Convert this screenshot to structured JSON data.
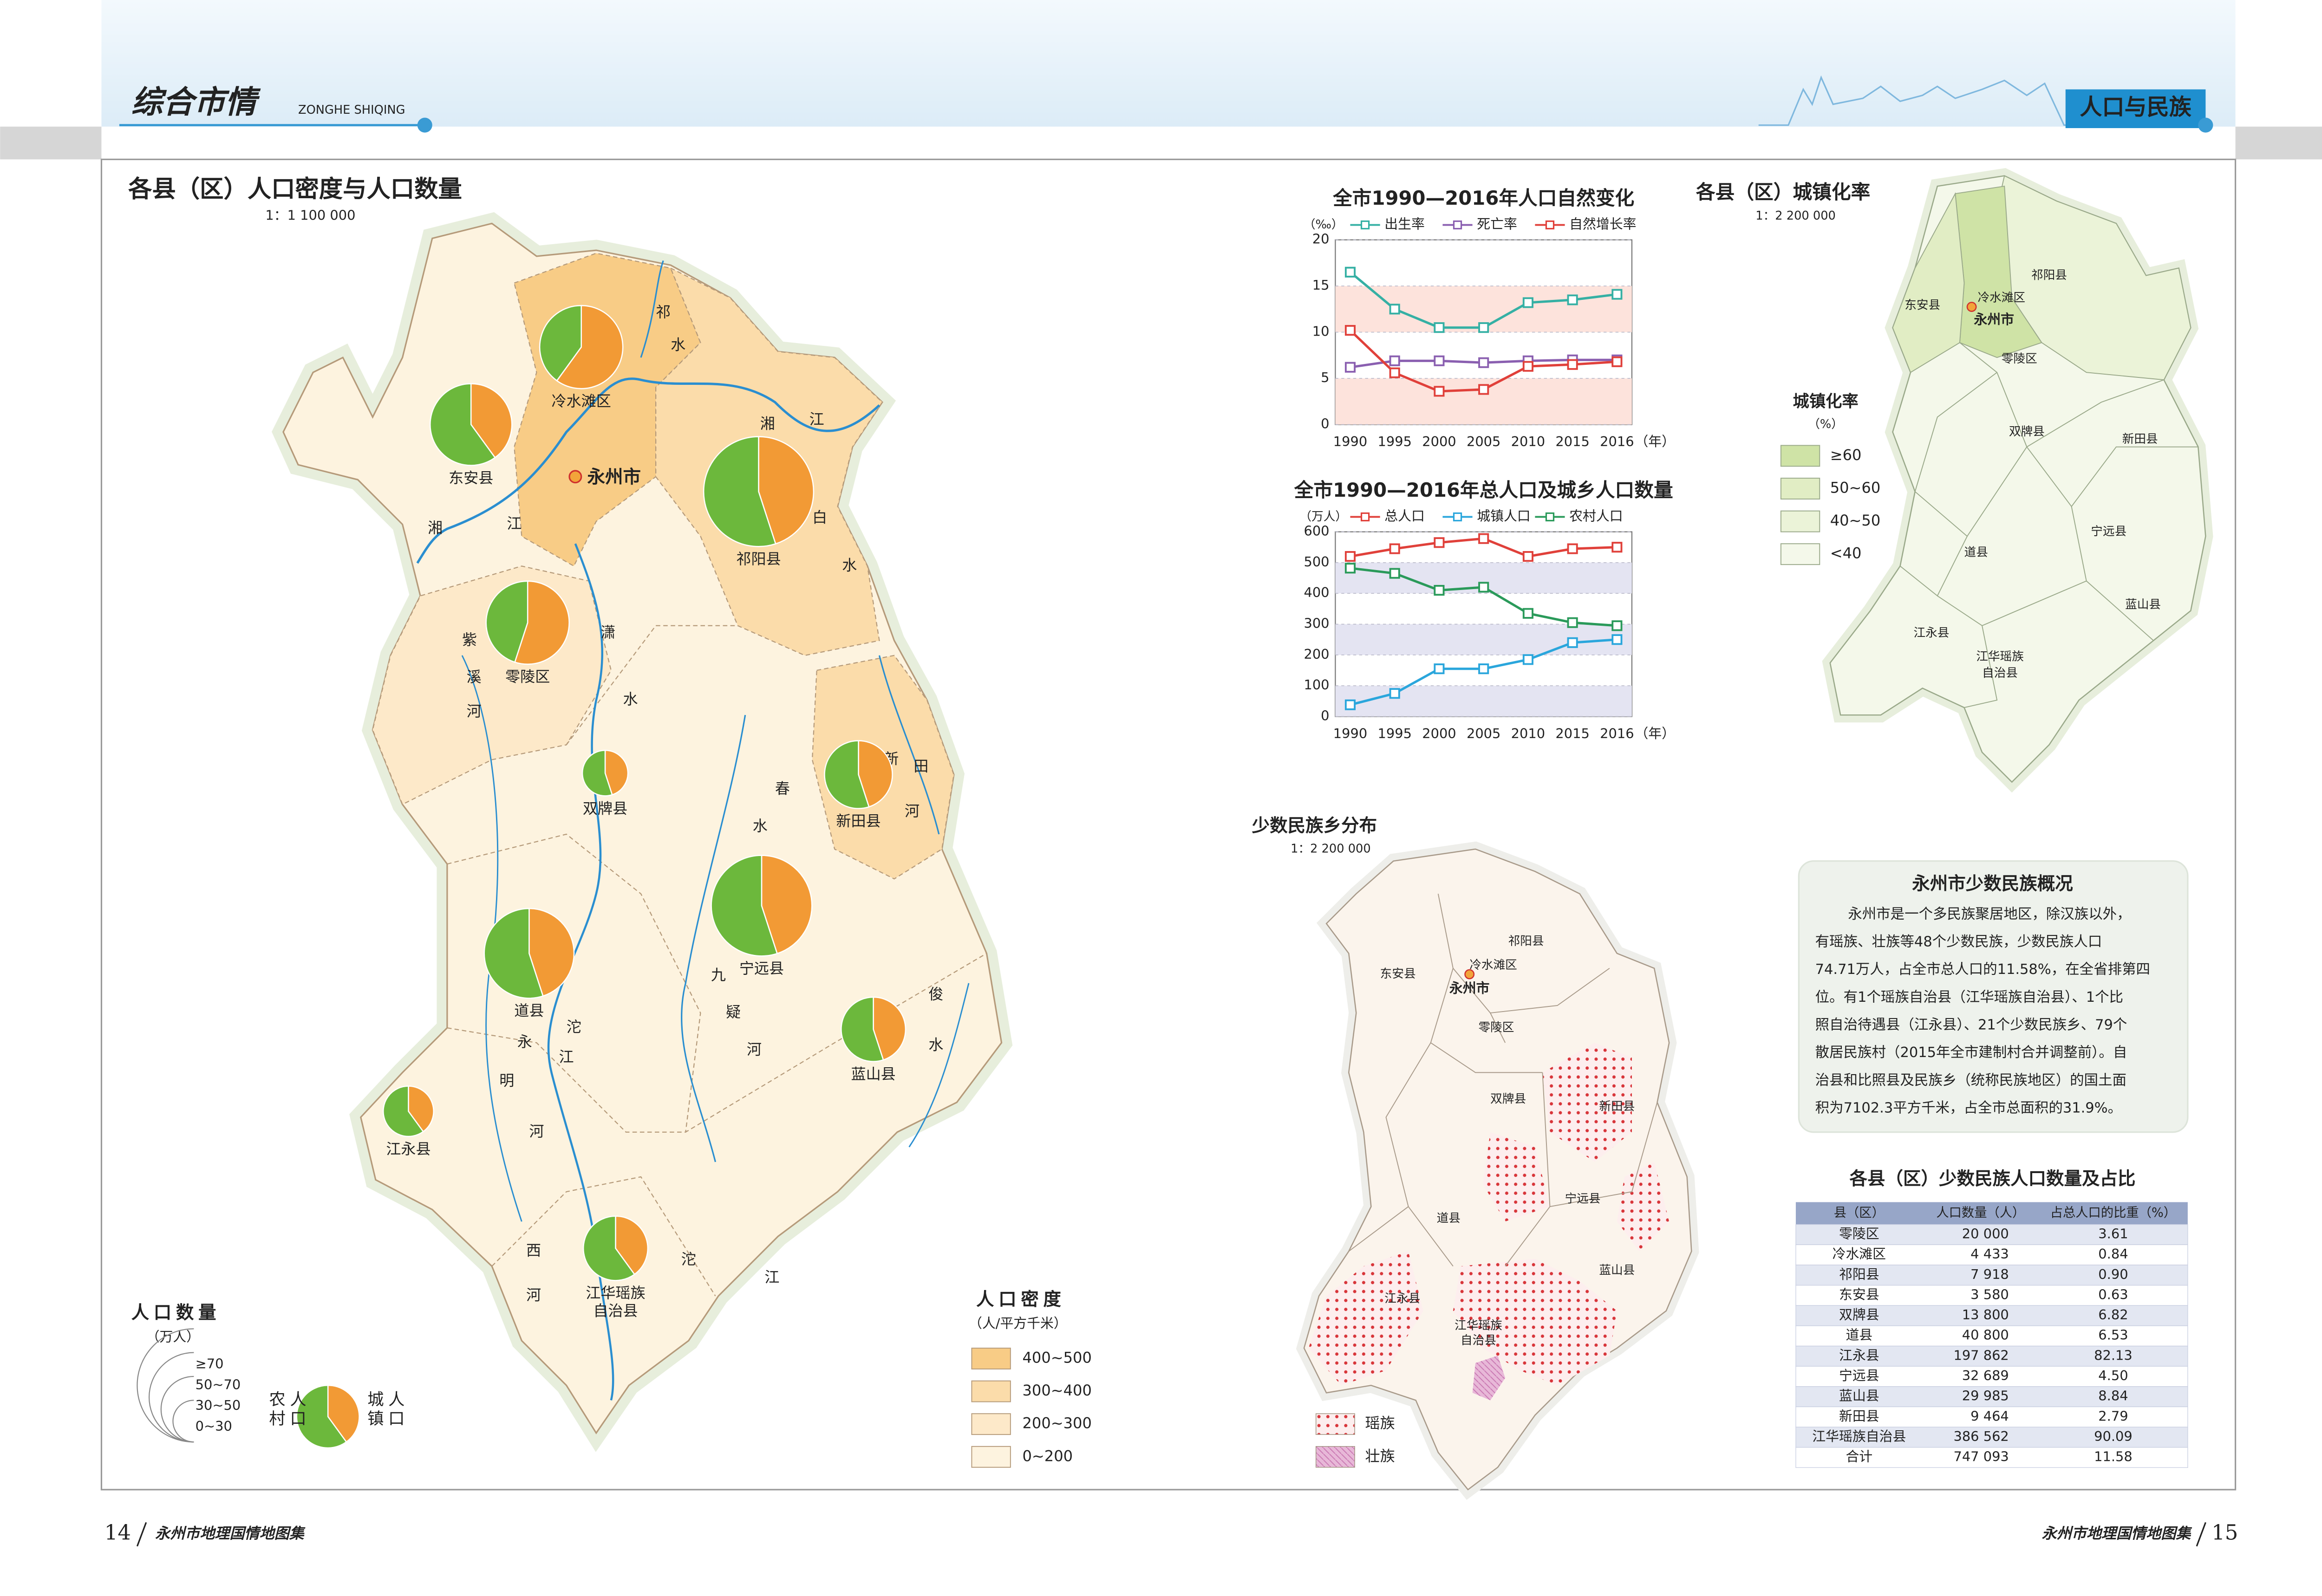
{
  "header": {
    "section": "综合市情",
    "section_pinyin": "ZONGHE SHIQING",
    "topic": "人口与民族"
  },
  "footer": {
    "left_page": "14",
    "left_title": "永州市地理国情地图集",
    "right_title": "永州市地理国情地图集",
    "right_page": "15"
  },
  "main_map": {
    "title": "各县（区）人口密度与人口数量",
    "scale": "1：1 100 000",
    "city": "永州市",
    "counties": [
      {
        "label": [
          "冷水滩区"
        ],
        "rural": 40,
        "urban": 60,
        "population": 60
      },
      {
        "label": [
          "东安县"
        ],
        "rural": 60,
        "urban": 40,
        "population": 58
      },
      {
        "label": [
          "祁阳县"
        ],
        "rural": 55,
        "urban": 45,
        "population": 105
      },
      {
        "label": [
          "零陵区"
        ],
        "rural": 45,
        "urban": 55,
        "population": 60
      },
      {
        "label": [
          "双牌县"
        ],
        "rural": 55,
        "urban": 45,
        "population": 18
      },
      {
        "label": [
          "新田县"
        ],
        "rural": 55,
        "urban": 45,
        "population": 40
      },
      {
        "label": [
          "宁远县"
        ],
        "rural": 55,
        "urban": 45,
        "population": 88
      },
      {
        "label": [
          "道县"
        ],
        "rural": 55,
        "urban": 45,
        "population": 70
      },
      {
        "label": [
          "蓝山县"
        ],
        "rural": 55,
        "urban": 45,
        "population": 36
      },
      {
        "label": [
          "江永县"
        ],
        "rural": 60,
        "urban": 40,
        "population": 22
      },
      {
        "label": [
          "江华瑶族",
          "自治县"
        ],
        "rural": 60,
        "urban": 40,
        "population": 36
      }
    ],
    "river_labels": [
      "湘",
      "江",
      "湘",
      "江",
      "祁",
      "水",
      "白",
      "水",
      "潇",
      "水",
      "紫",
      "溪",
      "河",
      "春",
      "水",
      "新",
      "田",
      "河",
      "九",
      "疑",
      "河",
      "沱",
      "江",
      "永",
      "明",
      "河",
      "西",
      "河",
      "沱",
      "江",
      "俊",
      "水"
    ],
    "size_legend": {
      "title": "人口数量",
      "unit": "（万人）",
      "classes": [
        "≥70",
        "50~70",
        "30~50",
        "0~30"
      ]
    },
    "pie_legend": {
      "rural": "农村人口",
      "urban": "城镇人口"
    },
    "density_legend": {
      "title": "人口密度",
      "unit": "（人/平方千米）",
      "classes": [
        {
          "label": "400~500",
          "color": "#f8cc86"
        },
        {
          "label": "300~400",
          "color": "#fbdcaa"
        },
        {
          "label": "200~300",
          "color": "#fde9c9"
        },
        {
          "label": "0~200",
          "color": "#fdf3df"
        }
      ]
    }
  },
  "chart_data": [
    {
      "type": "line",
      "title": "全市1990—2016年人口自然变化",
      "y_unit": "（‰）",
      "x_unit": "（年）",
      "categories": [
        "1990",
        "1995",
        "2000",
        "2005",
        "2010",
        "2015",
        "2016"
      ],
      "ylim": [
        0,
        20
      ],
      "yticks": [
        0,
        5,
        10,
        15,
        20
      ],
      "band_color": "#fde3dc",
      "series": [
        {
          "name": "出生率",
          "color": "#35b0a4",
          "values": [
            16.5,
            12.5,
            10.5,
            10.5,
            13.2,
            13.5,
            14.1
          ]
        },
        {
          "name": "死亡率",
          "color": "#8a5fb0",
          "values": [
            6.2,
            6.9,
            6.9,
            6.7,
            6.9,
            7.0,
            7.0
          ]
        },
        {
          "name": "自然增长率",
          "color": "#e0403a",
          "values": [
            10.2,
            5.6,
            3.6,
            3.8,
            6.3,
            6.5,
            6.8
          ]
        }
      ]
    },
    {
      "type": "line",
      "title": "全市1990—2016年总人口及城乡人口数量",
      "y_unit": "（万人）",
      "x_unit": "（年）",
      "categories": [
        "1990",
        "1995",
        "2000",
        "2005",
        "2010",
        "2015",
        "2016"
      ],
      "ylim": [
        0,
        600
      ],
      "yticks": [
        0,
        100,
        200,
        300,
        400,
        500,
        600
      ],
      "band_color": "#e4e4f2",
      "series": [
        {
          "name": "总人口",
          "color": "#e0403a",
          "values": [
            520,
            545,
            565,
            578,
            520,
            545,
            550
          ]
        },
        {
          "name": "城镇人口",
          "color": "#2aa6dc",
          "values": [
            38,
            75,
            155,
            155,
            185,
            240,
            250
          ]
        },
        {
          "name": "农村人口",
          "color": "#2a9a5a",
          "values": [
            482,
            465,
            410,
            420,
            335,
            305,
            295
          ]
        }
      ]
    }
  ],
  "urbanization_map": {
    "title": "各县（区）城镇化率",
    "scale": "1：2 200 000",
    "city": "永州市",
    "labels": [
      "东安县",
      "冷水滩区",
      "祁阳县",
      "零陵区",
      "双牌县",
      "新田县",
      "宁远县",
      "道县",
      "蓝山县",
      "江永县",
      "江华瑶族",
      "自治县"
    ],
    "legend": {
      "title": "城镇化率",
      "unit": "（%）",
      "classes": [
        {
          "label": "≥60",
          "color": "#cfe3a6"
        },
        {
          "label": "50~60",
          "color": "#e1edc4"
        },
        {
          "label": "40~50",
          "color": "#ebf3d8"
        },
        {
          "label": "<40",
          "color": "#f4f8ea"
        }
      ]
    }
  },
  "minority_map": {
    "title": "少数民族乡分布",
    "scale": "1：2 200 000",
    "city": "永州市",
    "labels": [
      "东安县",
      "冷水滩区",
      "祁阳县",
      "零陵区",
      "双牌县",
      "新田县",
      "宁远县",
      "道县",
      "蓝山县",
      "江永县",
      "江华瑶族",
      "自治县"
    ],
    "legend": [
      "瑶族",
      "壮族"
    ]
  },
  "overview": {
    "title": "永州市少数民族概况",
    "lines": [
      "永州市是一个多民族聚居地区，除汉族以外，",
      "有瑶族、壮族等48个少数民族，少数民族人口",
      "74.71万人，占全市总人口的11.58%，在全省排第四",
      "位。有1个瑶族自治县（江华瑶族自治县）、1个比",
      "照自治待遇县（江永县）、21个少数民族乡、79个",
      "散居民族村（2015年全市建制村合并调整前）。自",
      "治县和比照县及民族乡（统称民族地区）的国土面",
      "积为7102.3平方千米，占全市总面积的31.9%。"
    ]
  },
  "table": {
    "title": "各县（区）少数民族人口数量及占比",
    "columns": [
      "县（区）",
      "人口数量（人）",
      "占总人口的比重（%）"
    ],
    "rows": [
      [
        "零陵区",
        "20 000",
        "3.61"
      ],
      [
        "冷水滩区",
        "4 433",
        "0.84"
      ],
      [
        "祁阳县",
        "7 918",
        "0.90"
      ],
      [
        "东安县",
        "3 580",
        "0.63"
      ],
      [
        "双牌县",
        "13 800",
        "6.82"
      ],
      [
        "道县",
        "40 800",
        "6.53"
      ],
      [
        "江永县",
        "197 862",
        "82.13"
      ],
      [
        "宁远县",
        "32 689",
        "4.50"
      ],
      [
        "蓝山县",
        "29 985",
        "8.84"
      ],
      [
        "新田县",
        "9 464",
        "2.79"
      ],
      [
        "江华瑶族自治县",
        "386 562",
        "90.09"
      ],
      [
        "合计",
        "747 093",
        "11.58"
      ]
    ]
  }
}
